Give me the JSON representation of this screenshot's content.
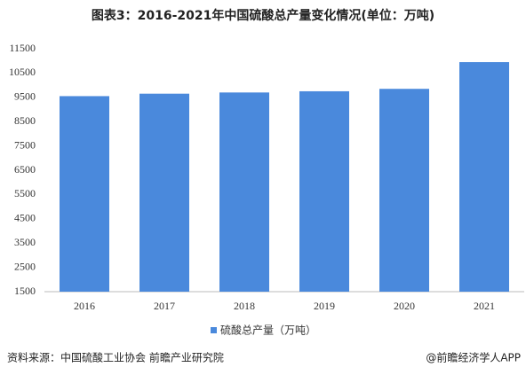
{
  "chart_data": {
    "type": "bar",
    "title": "图表3：2016-2021年中国硫酸总产量变化情况(单位：万吨)",
    "categories": [
      "2016",
      "2017",
      "2018",
      "2019",
      "2020",
      "2021"
    ],
    "series": [
      {
        "name": "硫酸总产量（万吨）",
        "color": "#4a89dc",
        "values": [
          9550,
          9650,
          9700,
          9750,
          9850,
          10950
        ]
      }
    ],
    "ylim": [
      1500,
      11500
    ],
    "yticks": [
      1500,
      2500,
      3500,
      4500,
      5500,
      6500,
      7500,
      8500,
      9500,
      10500,
      11500
    ],
    "grid": false,
    "legend": "bottom",
    "source": "资料来源：中国硫酸工业协会 前瞻产业研究院",
    "credit": "@前瞻经济学人APP"
  }
}
